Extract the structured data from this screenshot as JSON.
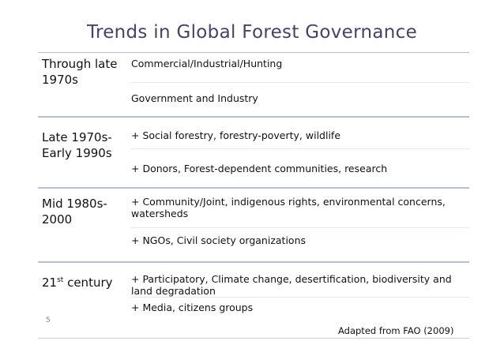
{
  "title": "Trends in Global Forest Governance",
  "rows": [
    {
      "period": "Through late 1970s",
      "items": [
        "Commercial/Industrial/Hunting",
        "Government and Industry"
      ]
    },
    {
      "period": "Late 1970s-Early 1990s",
      "items": [
        "+ Social forestry, forestry-poverty, wildlife",
        "+ Donors, Forest-dependent communities, research"
      ]
    },
    {
      "period": "Mid 1980s-2000",
      "items": [
        "+ Community/Joint, indigenous rights, environmental concerns, watersheds",
        "+ NGOs, Civil society organizations"
      ]
    },
    {
      "period_main": "21",
      "period_sup": "st",
      "period_rest": " century",
      "items": [
        "+ Participatory, Climate change, desertification, biodiversity and land degradation",
        "+ Media, citizens groups"
      ]
    }
  ],
  "page_number": "5",
  "source": "Adapted from FAO (2009)"
}
